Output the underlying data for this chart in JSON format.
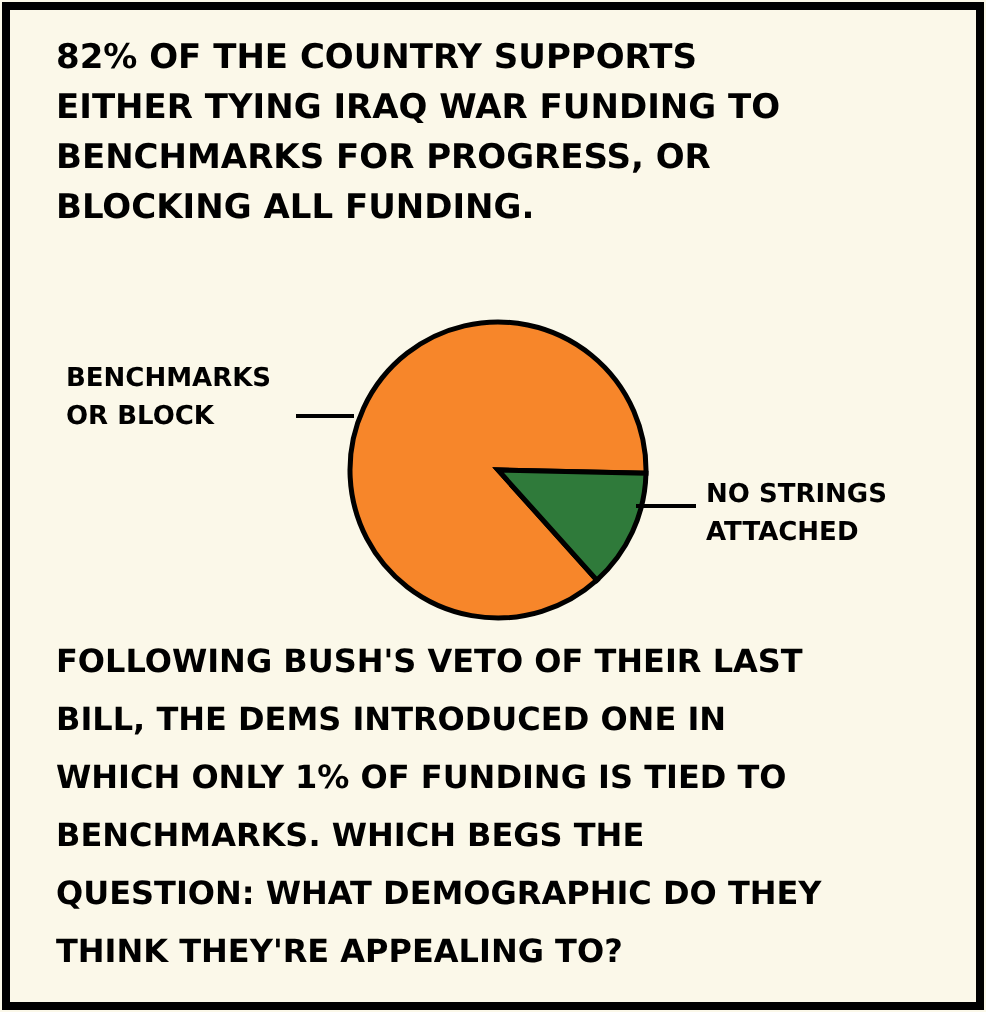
{
  "chart_data": {
    "type": "pie",
    "title": "82% OF THE COUNTRY SUPPORTS EITHER TYING IRAQ WAR FUNDING TO BENCHMARKS FOR PROGRESS, OR BLOCKING ALL FUNDING.",
    "categories": [
      "BENCHMARKS OR BLOCK",
      "NO STRINGS ATTACHED"
    ],
    "values": [
      87,
      13
    ],
    "colors": [
      "#f7862a",
      "#2f7a3a"
    ],
    "annotations": [
      "FOLLOWING BUSH'S VETO OF THEIR LAST BILL, THE DEMS INTRODUCED ONE IN WHICH ONLY 1% OF FUNDING IS TIED TO BENCHMARKS. WHICH BEGS THE QUESTION: WHAT DEMOGRAPHIC DO THEY THINK THEY'RE APPEALING TO?"
    ]
  }
}
